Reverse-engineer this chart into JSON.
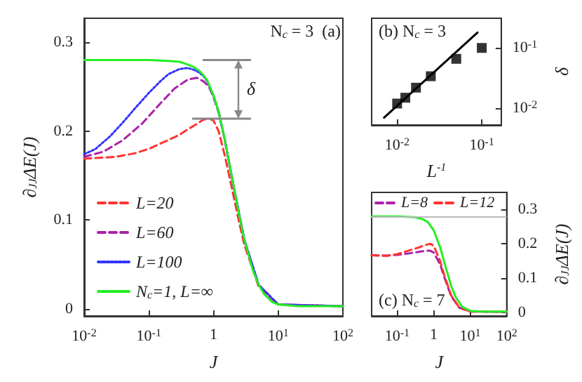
{
  "chart_data": [
    {
      "type": "line",
      "xlabel": "J",
      "ylabel": "∂$_{JJ}$ΔE(J)",
      "log": "x",
      "xlim": [
        0.01,
        100
      ],
      "xticks": [
        {
          "value": 0.01,
          "label": "10$^{-2}$"
        },
        {
          "value": 0.1,
          "label": "10$^{-1}$"
        },
        1,
        {
          "value": 10,
          "label": "10$^{1}$"
        },
        {
          "value": 100,
          "label": "10$^{2}$"
        }
      ],
      "ylim": [
        -0.008,
        0.327
      ],
      "yticks": [
        0,
        0.1,
        0.2,
        0.3
      ],
      "legend": "bottom left",
      "marker": "none",
      "annotations": [
        "N$_{c}$ = 3  (a)",
        "δ"
      ],
      "series": [
        {
          "name": "L=20",
          "color": "#ff3333",
          "line_style": "dashed",
          "x": [
            0.01,
            0.03,
            0.06,
            0.1,
            0.2,
            0.3,
            0.4,
            0.55,
            0.7,
            0.85,
            1,
            1.2,
            1.5,
            2,
            2.5,
            3,
            5,
            10,
            100
          ],
          "values": [
            0.169,
            0.171,
            0.175,
            0.18,
            0.19,
            0.196,
            0.202,
            0.208,
            0.213,
            0.214,
            0.212,
            0.2,
            0.172,
            0.13,
            0.097,
            0.072,
            0.025,
            0.005,
            0.003
          ]
        },
        {
          "name": "L=60",
          "color": "#aa22aa",
          "line_style": "dashed",
          "x": [
            0.01,
            0.02,
            0.04,
            0.08,
            0.15,
            0.25,
            0.4,
            0.55,
            0.7,
            0.85,
            1,
            1.2,
            1.5,
            2,
            3,
            5,
            10,
            100
          ],
          "values": [
            0.171,
            0.177,
            0.19,
            0.209,
            0.231,
            0.248,
            0.258,
            0.26,
            0.256,
            0.25,
            0.238,
            0.221,
            0.189,
            0.141,
            0.077,
            0.027,
            0.005,
            0.003
          ]
        },
        {
          "name": "L=100",
          "color": "#3333ff",
          "line_style": "dotted",
          "x": [
            0.01,
            0.015,
            0.025,
            0.04,
            0.06,
            0.1,
            0.15,
            0.2,
            0.3,
            0.4,
            0.5,
            0.6,
            0.7,
            0.8,
            1,
            1.2,
            1.5,
            2,
            3,
            5,
            10,
            100
          ],
          "values": [
            0.174,
            0.18,
            0.194,
            0.21,
            0.225,
            0.243,
            0.256,
            0.264,
            0.27,
            0.271,
            0.269,
            0.266,
            0.262,
            0.256,
            0.24,
            0.222,
            0.19,
            0.142,
            0.078,
            0.027,
            0.005,
            0.003
          ]
        },
        {
          "name": "N$_{c}$=1, L=∞",
          "color": "#22ee22",
          "line_style": "solid",
          "x": [
            0.01,
            0.1,
            0.2,
            0.3,
            0.4,
            0.5,
            0.6,
            0.7,
            0.8,
            1,
            1.2,
            1.5,
            2,
            2.5,
            3,
            4,
            5,
            6,
            8,
            10,
            20,
            50,
            100
          ],
          "values": [
            0.28,
            0.28,
            0.279,
            0.278,
            0.275,
            0.272,
            0.268,
            0.263,
            0.257,
            0.24,
            0.222,
            0.19,
            0.142,
            0.105,
            0.078,
            0.045,
            0.027,
            0.017,
            0.008,
            0.005,
            0.003,
            0.003,
            0.003
          ]
        }
      ]
    },
    {
      "type": "scatter",
      "xlabel": "L$^{-1}$",
      "ylabel": "δ",
      "log": "xy",
      "xlim": [
        0.005,
        0.17
      ],
      "xticks": [
        {
          "value": 0.01,
          "label": "10$^{-2}$"
        },
        {
          "value": 0.1,
          "label": "10$^{-1}$"
        }
      ],
      "ylim": [
        0.0053,
        0.31
      ],
      "yticks": [
        {
          "value": 0.01,
          "label": "10$^{-2}$"
        },
        {
          "value": 0.1,
          "label": "10$^{-1}$"
        }
      ],
      "marker": "square",
      "annotations": [
        "(b) N$_{c}$ = 3"
      ],
      "series": [
        {
          "color": "#000000",
          "x": [
            0.01,
            0.0125,
            0.0167,
            0.025,
            0.05,
            0.1
          ],
          "values": [
            0.012,
            0.015,
            0.022,
            0.034,
            0.066,
            0.1
          ]
        },
        {
          "type": "line",
          "color": "#000000",
          "marker": "none",
          "line_style": "solid",
          "x": [
            0.007,
            0.089
          ],
          "values": [
            0.007,
            0.18
          ]
        }
      ]
    },
    {
      "type": "line",
      "xlabel": "J",
      "y2label": "∂$_{JJ}$ΔE(J)",
      "log": "x",
      "xlim": [
        0.02,
        100
      ],
      "xticks": [
        {
          "value": 0.1,
          "label": "10$^{-1}$"
        },
        1,
        {
          "value": 10,
          "label": "10$^{1}$"
        },
        {
          "value": 100,
          "label": "10$^{2}$"
        }
      ],
      "y2lim": [
        -0.01,
        0.35
      ],
      "y2ticks": [
        0,
        0.1,
        0.2,
        0.3
      ],
      "legend": "top",
      "marker": "none",
      "annotations": [
        "(c) N$_{c}$ = 7"
      ],
      "ref_lines": [
        {
          "axis": "y2",
          "value": 0.28,
          "label": null,
          "color": "#bbbbbb"
        }
      ],
      "series": [
        {
          "name": "L=8",
          "axis": "y2",
          "color": "#aa22aa",
          "line_style": "dashed",
          "x": [
            0.02,
            0.05,
            0.1,
            0.2,
            0.4,
            0.6,
            0.8,
            1,
            1.5,
            2,
            3,
            5,
            10,
            100
          ],
          "values": [
            0.167,
            0.166,
            0.168,
            0.172,
            0.177,
            0.18,
            0.18,
            0.175,
            0.14,
            0.1,
            0.048,
            0.014,
            0.003,
            0.002
          ]
        },
        {
          "name": "L=12",
          "axis": "y2",
          "color": "#ff3333",
          "line_style": "dashed",
          "x": [
            0.02,
            0.05,
            0.1,
            0.2,
            0.4,
            0.6,
            0.8,
            1,
            1.5,
            2,
            3,
            5,
            10,
            100
          ],
          "values": [
            0.167,
            0.165,
            0.17,
            0.18,
            0.19,
            0.197,
            0.2,
            0.195,
            0.15,
            0.105,
            0.05,
            0.015,
            0.003,
            0.002
          ]
        },
        {
          "axis": "y2",
          "color": "#22ee22",
          "line_style": "solid",
          "x": [
            0.02,
            0.1,
            0.3,
            0.5,
            0.7,
            1,
            1.5,
            2,
            3,
            4,
            6,
            10,
            20,
            100
          ],
          "values": [
            0.28,
            0.28,
            0.278,
            0.272,
            0.263,
            0.24,
            0.19,
            0.142,
            0.078,
            0.045,
            0.017,
            0.005,
            0.003,
            0.003
          ]
        }
      ]
    }
  ]
}
